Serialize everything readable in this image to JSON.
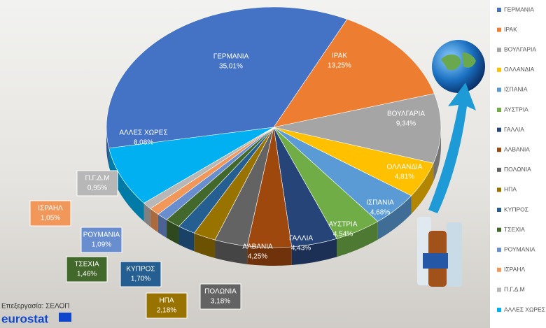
{
  "chart_data": {
    "type": "pie",
    "categories": [
      "ΓΕΡΜΑΝΙΑ",
      "ΙΡΑΚ",
      "ΒΟΥΛΓΑΡΙΑ",
      "ΟΛΛΑΝΔΙΑ",
      "ΙΣΠΑΝΙΑ",
      "ΑΥΣΤΡΙΑ",
      "ΓΑΛΛΙΑ",
      "ΑΛΒΑΝΙΑ",
      "ΠΟΛΩΝΙΑ",
      "ΗΠΑ",
      "ΚΥΠΡΟΣ",
      "ΤΣΕΧΙΑ",
      "ΡΟΥΜΑΝΙΑ",
      "ΙΣΡΑΗΛ",
      "Π.Γ.Δ.Μ",
      "ΑΛΛΕΣ ΧΩΡΕΣ"
    ],
    "values": [
      35.01,
      13.25,
      9.34,
      4.81,
      4.68,
      4.54,
      4.43,
      4.25,
      3.18,
      2.18,
      1.7,
      1.46,
      1.09,
      1.05,
      0.95,
      8.08
    ],
    "value_labels": [
      "35,01%",
      "13,25%",
      "9,34%",
      "4,81%",
      "4,68%",
      "4,54%",
      "4,43%",
      "4,25%",
      "3,18%",
      "2,18%",
      "1,70%",
      "1,46%",
      "1,09%",
      "1,05%",
      "0,95%",
      "8,08%"
    ],
    "colors": [
      "#4472c4",
      "#ed7d31",
      "#a5a5a5",
      "#ffc000",
      "#5b9bd5",
      "#70ad47",
      "#264478",
      "#9e480e",
      "#636363",
      "#997300",
      "#255e91",
      "#43682b",
      "#698ed0",
      "#f1975a",
      "#b7b7b7",
      "#00b0f0"
    ],
    "legend": "right",
    "source": "Επεξεργασία: ΣΕΛΟΠ",
    "logo": "eurostat"
  }
}
